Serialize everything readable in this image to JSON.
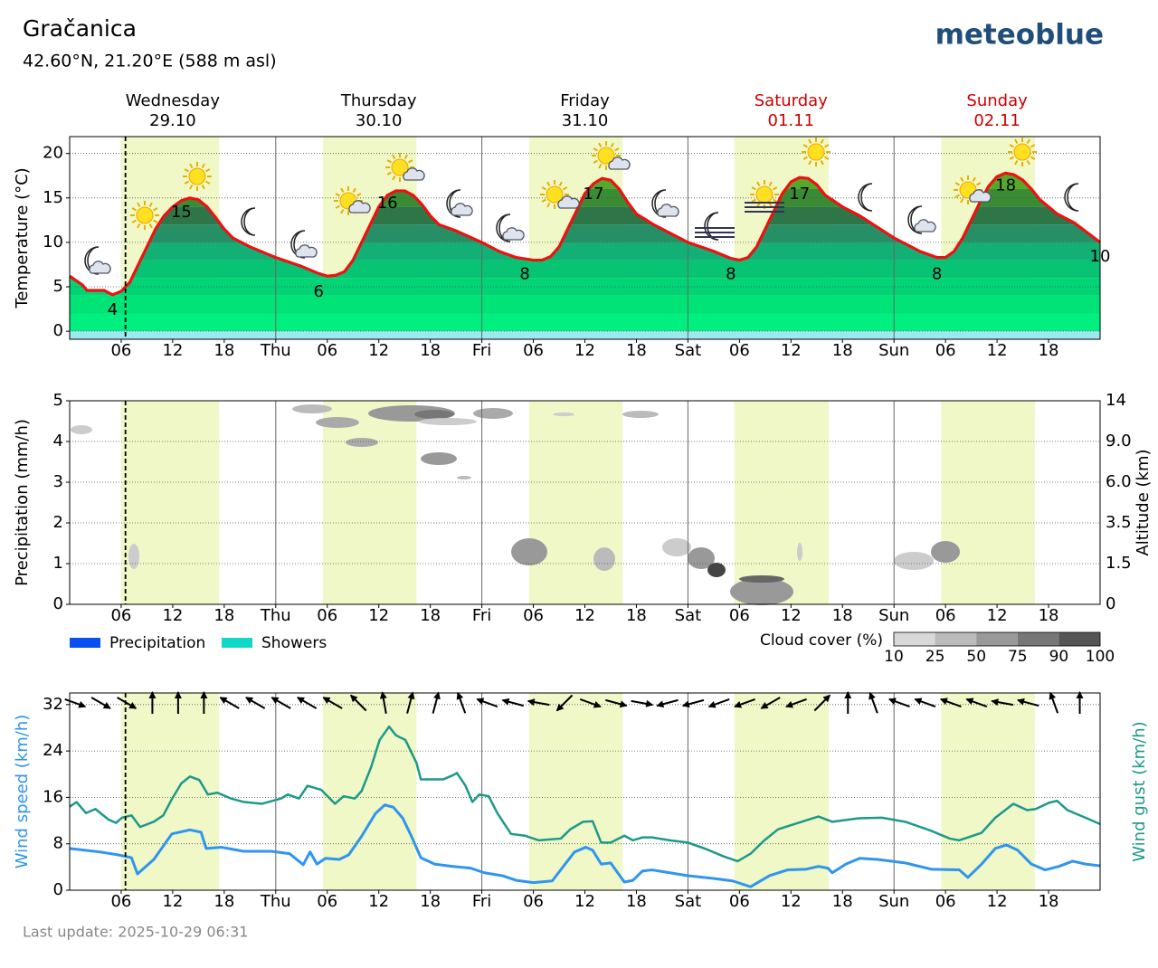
{
  "header": {
    "title": "Gračanica",
    "subtitle": "42.60°N, 21.20°E (588 m asl)",
    "logo": "meteoblue"
  },
  "footer": "Last update: 2025-10-29 06:31",
  "daylight": [
    [
      6,
      17.4
    ],
    [
      29.5,
      40.4
    ],
    [
      53.5,
      64.4
    ],
    [
      77.4,
      88.4
    ],
    [
      101.5,
      112.4
    ]
  ],
  "daylight_color": "#f0f8c8",
  "now": 6.5,
  "days": [
    {
      "name": "Wednesday",
      "date": "29.10",
      "color": "#000000"
    },
    {
      "name": "Thursday",
      "date": "30.10",
      "color": "#000000"
    },
    {
      "name": "Friday",
      "date": "31.10",
      "color": "#000000"
    },
    {
      "name": "Saturday",
      "date": "01.11",
      "color": "#cc0000"
    },
    {
      "name": "Sunday",
      "date": "02.11",
      "color": "#cc0000"
    }
  ],
  "chart_data": [
    {
      "type": "area",
      "ylabel": "Temperature (°C)",
      "xlim": [
        0,
        120
      ],
      "ylim": [
        -0.9,
        21.9
      ],
      "yticks": [
        0,
        5,
        10,
        15,
        20
      ],
      "xticks": [
        {
          "value": 6,
          "label": "06"
        },
        {
          "value": 12,
          "label": "12"
        },
        {
          "value": 18,
          "label": "18"
        },
        {
          "value": 24,
          "label": "Thu"
        },
        {
          "value": 30,
          "label": "06"
        },
        {
          "value": 36,
          "label": "12"
        },
        {
          "value": 42,
          "label": "18"
        },
        {
          "value": 48,
          "label": "Fri"
        },
        {
          "value": 54,
          "label": "06"
        },
        {
          "value": 60,
          "label": "12"
        },
        {
          "value": 66,
          "label": "18"
        },
        {
          "value": 72,
          "label": "Sat"
        },
        {
          "value": 78,
          "label": "06"
        },
        {
          "value": 84,
          "label": "12"
        },
        {
          "value": 90,
          "label": "18"
        },
        {
          "value": 96,
          "label": "Sun"
        },
        {
          "value": 102,
          "label": "06"
        },
        {
          "value": 108,
          "label": "12"
        },
        {
          "value": 114,
          "label": "18"
        }
      ],
      "color": "#ee1111",
      "below_color": "#9ee9f0",
      "fill_colors": [
        "#00f080",
        "#00e477",
        "#00d474",
        "#06c474",
        "#12b074",
        "#268f66",
        "#2e7648",
        "#3a8c34",
        "#55a82c",
        "#7cc83a"
      ],
      "x": [
        0,
        1.5,
        2,
        4,
        5,
        6,
        7,
        8,
        9,
        10,
        11,
        12,
        13,
        14,
        15,
        16,
        17,
        18,
        19,
        21,
        24,
        27,
        29,
        30,
        31,
        32,
        33,
        34,
        35,
        36,
        37,
        38,
        39,
        40,
        41,
        42,
        43,
        45,
        48,
        50,
        52,
        54,
        55,
        56,
        57,
        58,
        59,
        60,
        61,
        62,
        63,
        64,
        65,
        66,
        68,
        72,
        75,
        77,
        78,
        79,
        80,
        81,
        82,
        83,
        84,
        85,
        86,
        87,
        88,
        90,
        92,
        96,
        99,
        101,
        102,
        103,
        104,
        105,
        106,
        107,
        108,
        109,
        110,
        111,
        112,
        113,
        115,
        117,
        120
      ],
      "values": [
        6.2,
        5.2,
        4.6,
        4.6,
        4.1,
        4.5,
        5.5,
        7.5,
        9.5,
        11.5,
        13,
        14,
        14.7,
        15,
        14.8,
        14,
        12.8,
        11.5,
        10.5,
        9.5,
        8.3,
        7.3,
        6.5,
        6.2,
        6.3,
        6.7,
        8,
        10,
        12,
        14,
        15.3,
        15.8,
        15.8,
        15.3,
        14.3,
        13,
        12,
        11.3,
        10,
        9,
        8.3,
        8,
        8,
        8.4,
        9.5,
        11.5,
        13.5,
        15.5,
        16.6,
        17.2,
        17,
        16,
        14.5,
        13.2,
        12,
        10,
        9,
        8.2,
        8,
        8.3,
        9.5,
        11.5,
        13.5,
        15.5,
        16.8,
        17.3,
        17.2,
        16.5,
        15.3,
        14,
        13,
        10.5,
        9,
        8.3,
        8.3,
        9,
        10.5,
        12.5,
        14.5,
        16.3,
        17.4,
        17.8,
        17.6,
        17,
        16,
        14.8,
        13.2,
        12.2,
        10
      ],
      "annotations": [
        {
          "x": 5,
          "value": 4
        },
        {
          "x": 13,
          "value": 15
        },
        {
          "x": 29,
          "value": 6
        },
        {
          "x": 37,
          "value": 16
        },
        {
          "x": 53,
          "value": 8
        },
        {
          "x": 61,
          "value": 17
        },
        {
          "x": 77,
          "value": 8
        },
        {
          "x": 85,
          "value": 17
        },
        {
          "x": 101,
          "value": 8
        },
        {
          "x": 109,
          "value": 18
        },
        {
          "x": 120,
          "value": 10
        }
      ]
    },
    {
      "type": "cloud",
      "ylabel": "Precipitation (mm/h)",
      "y2label": "Altitude (km)",
      "xlim": [
        0,
        120
      ],
      "ylim": [
        0,
        5
      ],
      "yticks": [
        0,
        1,
        2,
        3,
        4,
        5
      ],
      "y2ticks": [
        {
          "value": 0,
          "label": "0"
        },
        {
          "value": 1.5,
          "label": "1.5"
        },
        {
          "value": 3.5,
          "label": "3.5"
        },
        {
          "value": 6,
          "label": "6.0"
        },
        {
          "value": 9,
          "label": "9.0"
        },
        {
          "value": 14,
          "label": "14"
        }
      ],
      "xticks": [
        {
          "value": 6,
          "label": "06"
        },
        {
          "value": 12,
          "label": "12"
        },
        {
          "value": 18,
          "label": "18"
        },
        {
          "value": 24,
          "label": "Thu"
        },
        {
          "value": 30,
          "label": "06"
        },
        {
          "value": 36,
          "label": "12"
        },
        {
          "value": 42,
          "label": "18"
        },
        {
          "value": 48,
          "label": "Fri"
        },
        {
          "value": 54,
          "label": "06"
        },
        {
          "value": 60,
          "label": "12"
        },
        {
          "value": 66,
          "label": "18"
        },
        {
          "value": 72,
          "label": "Sat"
        },
        {
          "value": 78,
          "label": "06"
        },
        {
          "value": 84,
          "label": "12"
        },
        {
          "value": 90,
          "label": "18"
        },
        {
          "value": 96,
          "label": "Sun"
        },
        {
          "value": 102,
          "label": "06"
        },
        {
          "value": 108,
          "label": "12"
        },
        {
          "value": 114,
          "label": "18"
        }
      ],
      "legend": [
        {
          "name": "Precipitation",
          "color": "#0a50f0"
        },
        {
          "name": "Showers",
          "color": "#10d8c8"
        }
      ],
      "cloud_cover": {
        "label": "Cloud cover (%)",
        "ticks": [
          10,
          25,
          50,
          75,
          90,
          100
        ],
        "colors": [
          "#d8d8d8",
          "#bbbbbb",
          "#999999",
          "#777777",
          "#555555"
        ]
      }
    },
    {
      "type": "line",
      "ylabel": "Wind speed (km/h)",
      "y2label": "Wind gust (km/h)",
      "xlim": [
        0,
        120
      ],
      "ylim": [
        0,
        34
      ],
      "yticks": [
        0,
        8,
        16,
        24,
        32
      ],
      "xticks": [
        {
          "value": 6,
          "label": "06"
        },
        {
          "value": 12,
          "label": "12"
        },
        {
          "value": 18,
          "label": "18"
        },
        {
          "value": 24,
          "label": "Thu"
        },
        {
          "value": 30,
          "label": "06"
        },
        {
          "value": 36,
          "label": "12"
        },
        {
          "value": 42,
          "label": "18"
        },
        {
          "value": 48,
          "label": "Fri"
        },
        {
          "value": 54,
          "label": "06"
        },
        {
          "value": 60,
          "label": "12"
        },
        {
          "value": 66,
          "label": "18"
        },
        {
          "value": 72,
          "label": "Sat"
        },
        {
          "value": 78,
          "label": "06"
        },
        {
          "value": 84,
          "label": "12"
        },
        {
          "value": 90,
          "label": "18"
        },
        {
          "value": 96,
          "label": "Sun"
        },
        {
          "value": 102,
          "label": "06"
        },
        {
          "value": 108,
          "label": "12"
        },
        {
          "value": 114,
          "label": "18"
        }
      ],
      "ylabel_color": "#2f95ee",
      "y2label_color": "#1d9989",
      "directions": [
        110,
        120,
        120,
        0,
        0,
        0,
        300,
        300,
        300,
        300,
        300,
        315,
        350,
        15,
        15,
        340,
        290,
        285,
        280,
        225,
        110,
        105,
        100,
        255,
        255,
        250,
        250,
        240,
        250,
        45,
        0,
        340,
        290,
        290,
        290,
        290,
        280,
        285,
        340,
        0
      ],
      "series": [
        {
          "name": "Wind speed",
          "color": "#2f95ee",
          "width": 3,
          "x": [
            0,
            3.5,
            5.6,
            7.2,
            7.9,
            9.8,
            11.9,
            14,
            15.3,
            15.9,
            17.7,
            20.3,
            23.5,
            25.6,
            27.2,
            28,
            28.8,
            29.8,
            31.4,
            32.5,
            34,
            35.6,
            36.7,
            37.7,
            38.8,
            39.8,
            40.9,
            42.5,
            44.6,
            46.7,
            48.3,
            50.4,
            52,
            54,
            56.2,
            57.7,
            58.8,
            60.1,
            60.9,
            61.9,
            63,
            64.6,
            65.6,
            66.7,
            67.8,
            69.9,
            72,
            75.1,
            77.2,
            79.3,
            81.5,
            83.6,
            85.7,
            87.2,
            88.3,
            88.8,
            90.4,
            92,
            94.1,
            97.3,
            100.4,
            103.6,
            104.6,
            106.2,
            107.8,
            109.1,
            110.4,
            112,
            113.6,
            115.2,
            116.8,
            118.3,
            120
          ],
          "values": [
            7.2,
            6.6,
            6.1,
            5.6,
            2.8,
            5.3,
            9.7,
            10.4,
            10,
            7.2,
            7.4,
            6.7,
            6.7,
            6.3,
            4.4,
            6.6,
            4.5,
            5.5,
            5.3,
            6.1,
            9.3,
            13.2,
            14.7,
            14.3,
            12.4,
            9.3,
            5.6,
            4.5,
            4.1,
            3.8,
            3,
            2.5,
            1.7,
            1.3,
            1.6,
            4.5,
            6.6,
            7.4,
            6.9,
            4.5,
            4.7,
            1.4,
            1.7,
            3.3,
            3.5,
            3,
            2.5,
            2,
            1.6,
            0.6,
            2.5,
            3.5,
            3.6,
            4.1,
            3.8,
            3,
            4.5,
            5.5,
            5.3,
            4.7,
            3.6,
            3.5,
            2.2,
            4.5,
            7.2,
            7.8,
            6.9,
            4.5,
            3.5,
            4.1,
            5,
            4.5,
            4.2
          ]
        },
        {
          "name": "Wind gust",
          "color": "#1d9989",
          "width": 2.5,
          "x": [
            0,
            0.8,
            1.9,
            3,
            4.5,
            5.4,
            6.1,
            7.2,
            8.2,
            9.8,
            10.9,
            11.9,
            13,
            14,
            15.1,
            16.1,
            17.2,
            18.8,
            20.3,
            22.4,
            24.6,
            25.4,
            26.7,
            27.7,
            29.3,
            30.9,
            31.9,
            33.2,
            34,
            35.1,
            36.1,
            37.2,
            38,
            39.1,
            40.4,
            40.9,
            43.5,
            44.6,
            45.1,
            46.1,
            46.9,
            47.7,
            48.8,
            49.8,
            51.4,
            53,
            54.6,
            57.2,
            58.3,
            59.8,
            60.9,
            61.9,
            63,
            64.6,
            65.6,
            66.7,
            67.8,
            69.9,
            72,
            74.1,
            76.2,
            77.8,
            79.3,
            80.9,
            82.5,
            84.6,
            87.2,
            88.8,
            91.9,
            94.6,
            97.3,
            100.4,
            102.5,
            103.6,
            104.6,
            106.2,
            107.8,
            109.9,
            111.5,
            112.5,
            114.1,
            115,
            116.2,
            118.3,
            120
          ],
          "values": [
            14.4,
            15.2,
            13.3,
            14,
            12.2,
            11.6,
            12.5,
            12.9,
            10.9,
            11.8,
            12.9,
            15.7,
            18.4,
            19.6,
            19,
            16.5,
            16.8,
            15.8,
            15.2,
            14.9,
            15.8,
            16.5,
            15.8,
            18,
            17.3,
            14.9,
            16.2,
            15.8,
            17.1,
            21.2,
            25.9,
            28.2,
            26.7,
            25.9,
            21.9,
            19.1,
            19.1,
            19.8,
            20.2,
            18,
            15.2,
            16.5,
            16.2,
            13.3,
            9.7,
            9.4,
            8.6,
            8.9,
            10.5,
            11.8,
            11.9,
            8.2,
            8.2,
            9.4,
            8.6,
            9.1,
            9.1,
            8.6,
            8.2,
            7.1,
            5.8,
            5,
            6.3,
            8.6,
            10.5,
            11.5,
            12.7,
            11.8,
            12.4,
            12.5,
            11.8,
            10.2,
            8.9,
            8.6,
            9.1,
            9.9,
            12.5,
            14.9,
            13.8,
            14,
            15.1,
            15.4,
            13.8,
            12.5,
            11.4
          ]
        }
      ]
    }
  ]
}
